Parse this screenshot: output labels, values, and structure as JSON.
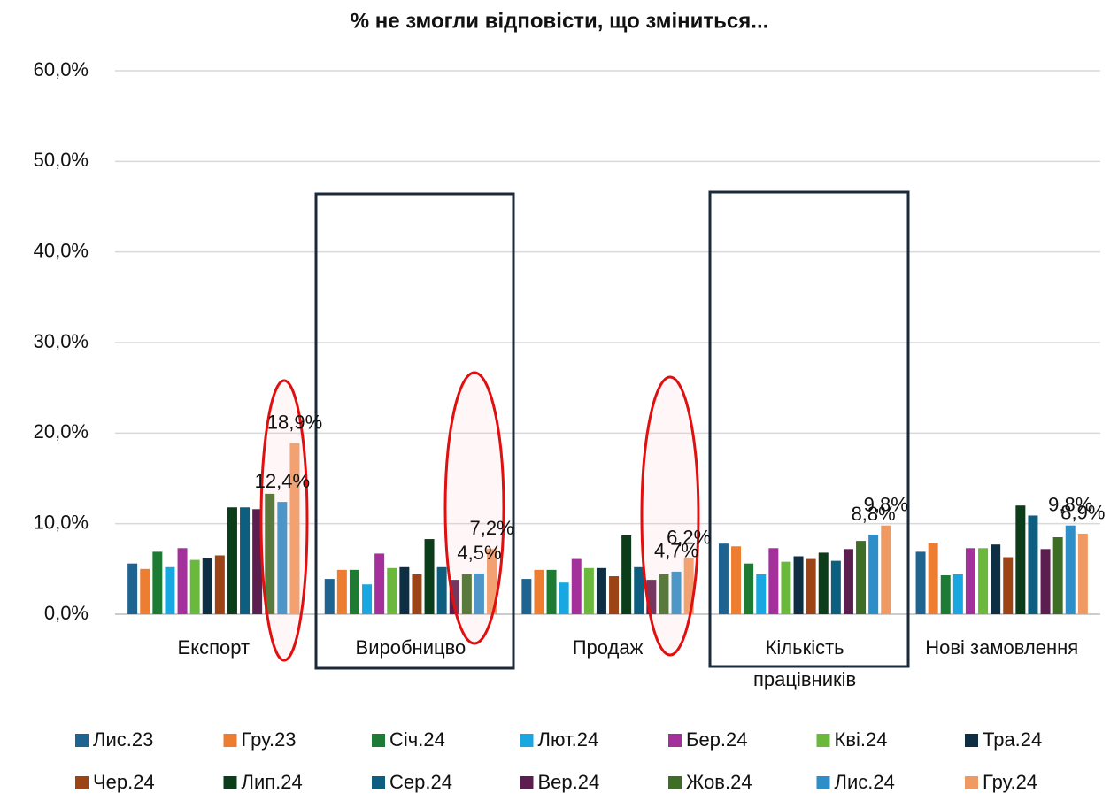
{
  "chart_data": {
    "type": "bar",
    "title": "% не змогли відповісти, що зміниться...",
    "categories": [
      "Експорт",
      "Виробницво",
      "Продаж",
      "Кількість працівників",
      "Нові замовлення"
    ],
    "ylim": [
      0,
      60
    ],
    "yticks": [
      {
        "value": 0,
        "label": "0,0%"
      },
      {
        "value": 10,
        "label": "10,0%"
      },
      {
        "value": 20,
        "label": "20,0%"
      },
      {
        "value": 30,
        "label": "30,0%"
      },
      {
        "value": 40,
        "label": "40,0%"
      },
      {
        "value": 50,
        "label": "50,0%"
      },
      {
        "value": 60,
        "label": "60,0%"
      }
    ],
    "grid": true,
    "legend": "bottom",
    "series": [
      {
        "name": "Лис.23",
        "color": "#1f6391",
        "values": [
          5.6,
          3.9,
          3.9,
          7.8,
          6.9
        ]
      },
      {
        "name": "Гру.23",
        "color": "#ed7d31",
        "values": [
          5.0,
          4.9,
          4.9,
          7.5,
          7.9
        ]
      },
      {
        "name": "Січ.24",
        "color": "#1e7b34",
        "values": [
          6.9,
          4.9,
          4.9,
          5.6,
          4.3
        ]
      },
      {
        "name": "Лют.24",
        "color": "#18a7e0",
        "values": [
          5.2,
          3.3,
          3.5,
          4.4,
          4.4
        ]
      },
      {
        "name": "Бер.24",
        "color": "#a4309c",
        "values": [
          7.3,
          6.7,
          6.1,
          7.3,
          7.3
        ]
      },
      {
        "name": "Кві.24",
        "color": "#6ab83c",
        "values": [
          6.0,
          5.1,
          5.1,
          5.8,
          7.3
        ]
      },
      {
        "name": "Тра.24",
        "color": "#0e2e44",
        "values": [
          6.2,
          5.2,
          5.1,
          6.4,
          7.7
        ]
      },
      {
        "name": "Чер.24",
        "color": "#9c4415",
        "values": [
          6.5,
          4.4,
          4.2,
          6.1,
          6.3
        ]
      },
      {
        "name": "Лип.24",
        "color": "#0b3d1a",
        "values": [
          11.8,
          8.3,
          8.7,
          6.8,
          12.0
        ]
      },
      {
        "name": "Сер.24",
        "color": "#0e5f7f",
        "values": [
          11.8,
          5.2,
          5.2,
          5.9,
          10.9
        ]
      },
      {
        "name": "Вер.24",
        "color": "#5b1e4e",
        "values": [
          11.6,
          3.8,
          3.8,
          7.2,
          7.2
        ]
      },
      {
        "name": "Жов.24",
        "color": "#3e6d25",
        "values": [
          13.3,
          4.4,
          4.4,
          8.1,
          8.5
        ]
      },
      {
        "name": "Лис.24",
        "color": "#2e8ec7",
        "values": [
          12.4,
          4.5,
          4.7,
          8.8,
          9.8
        ],
        "value_labels": [
          "12,4%",
          "4,5%",
          "4,7%",
          "8,8%",
          "9,8%"
        ]
      },
      {
        "name": "Гру.24",
        "color": "#f09a63",
        "values": [
          18.9,
          7.2,
          6.2,
          9.8,
          8.9
        ],
        "value_labels": [
          "18,9%",
          "7,2%",
          "6,2%",
          "9,8%",
          "8,9%"
        ]
      }
    ]
  }
}
